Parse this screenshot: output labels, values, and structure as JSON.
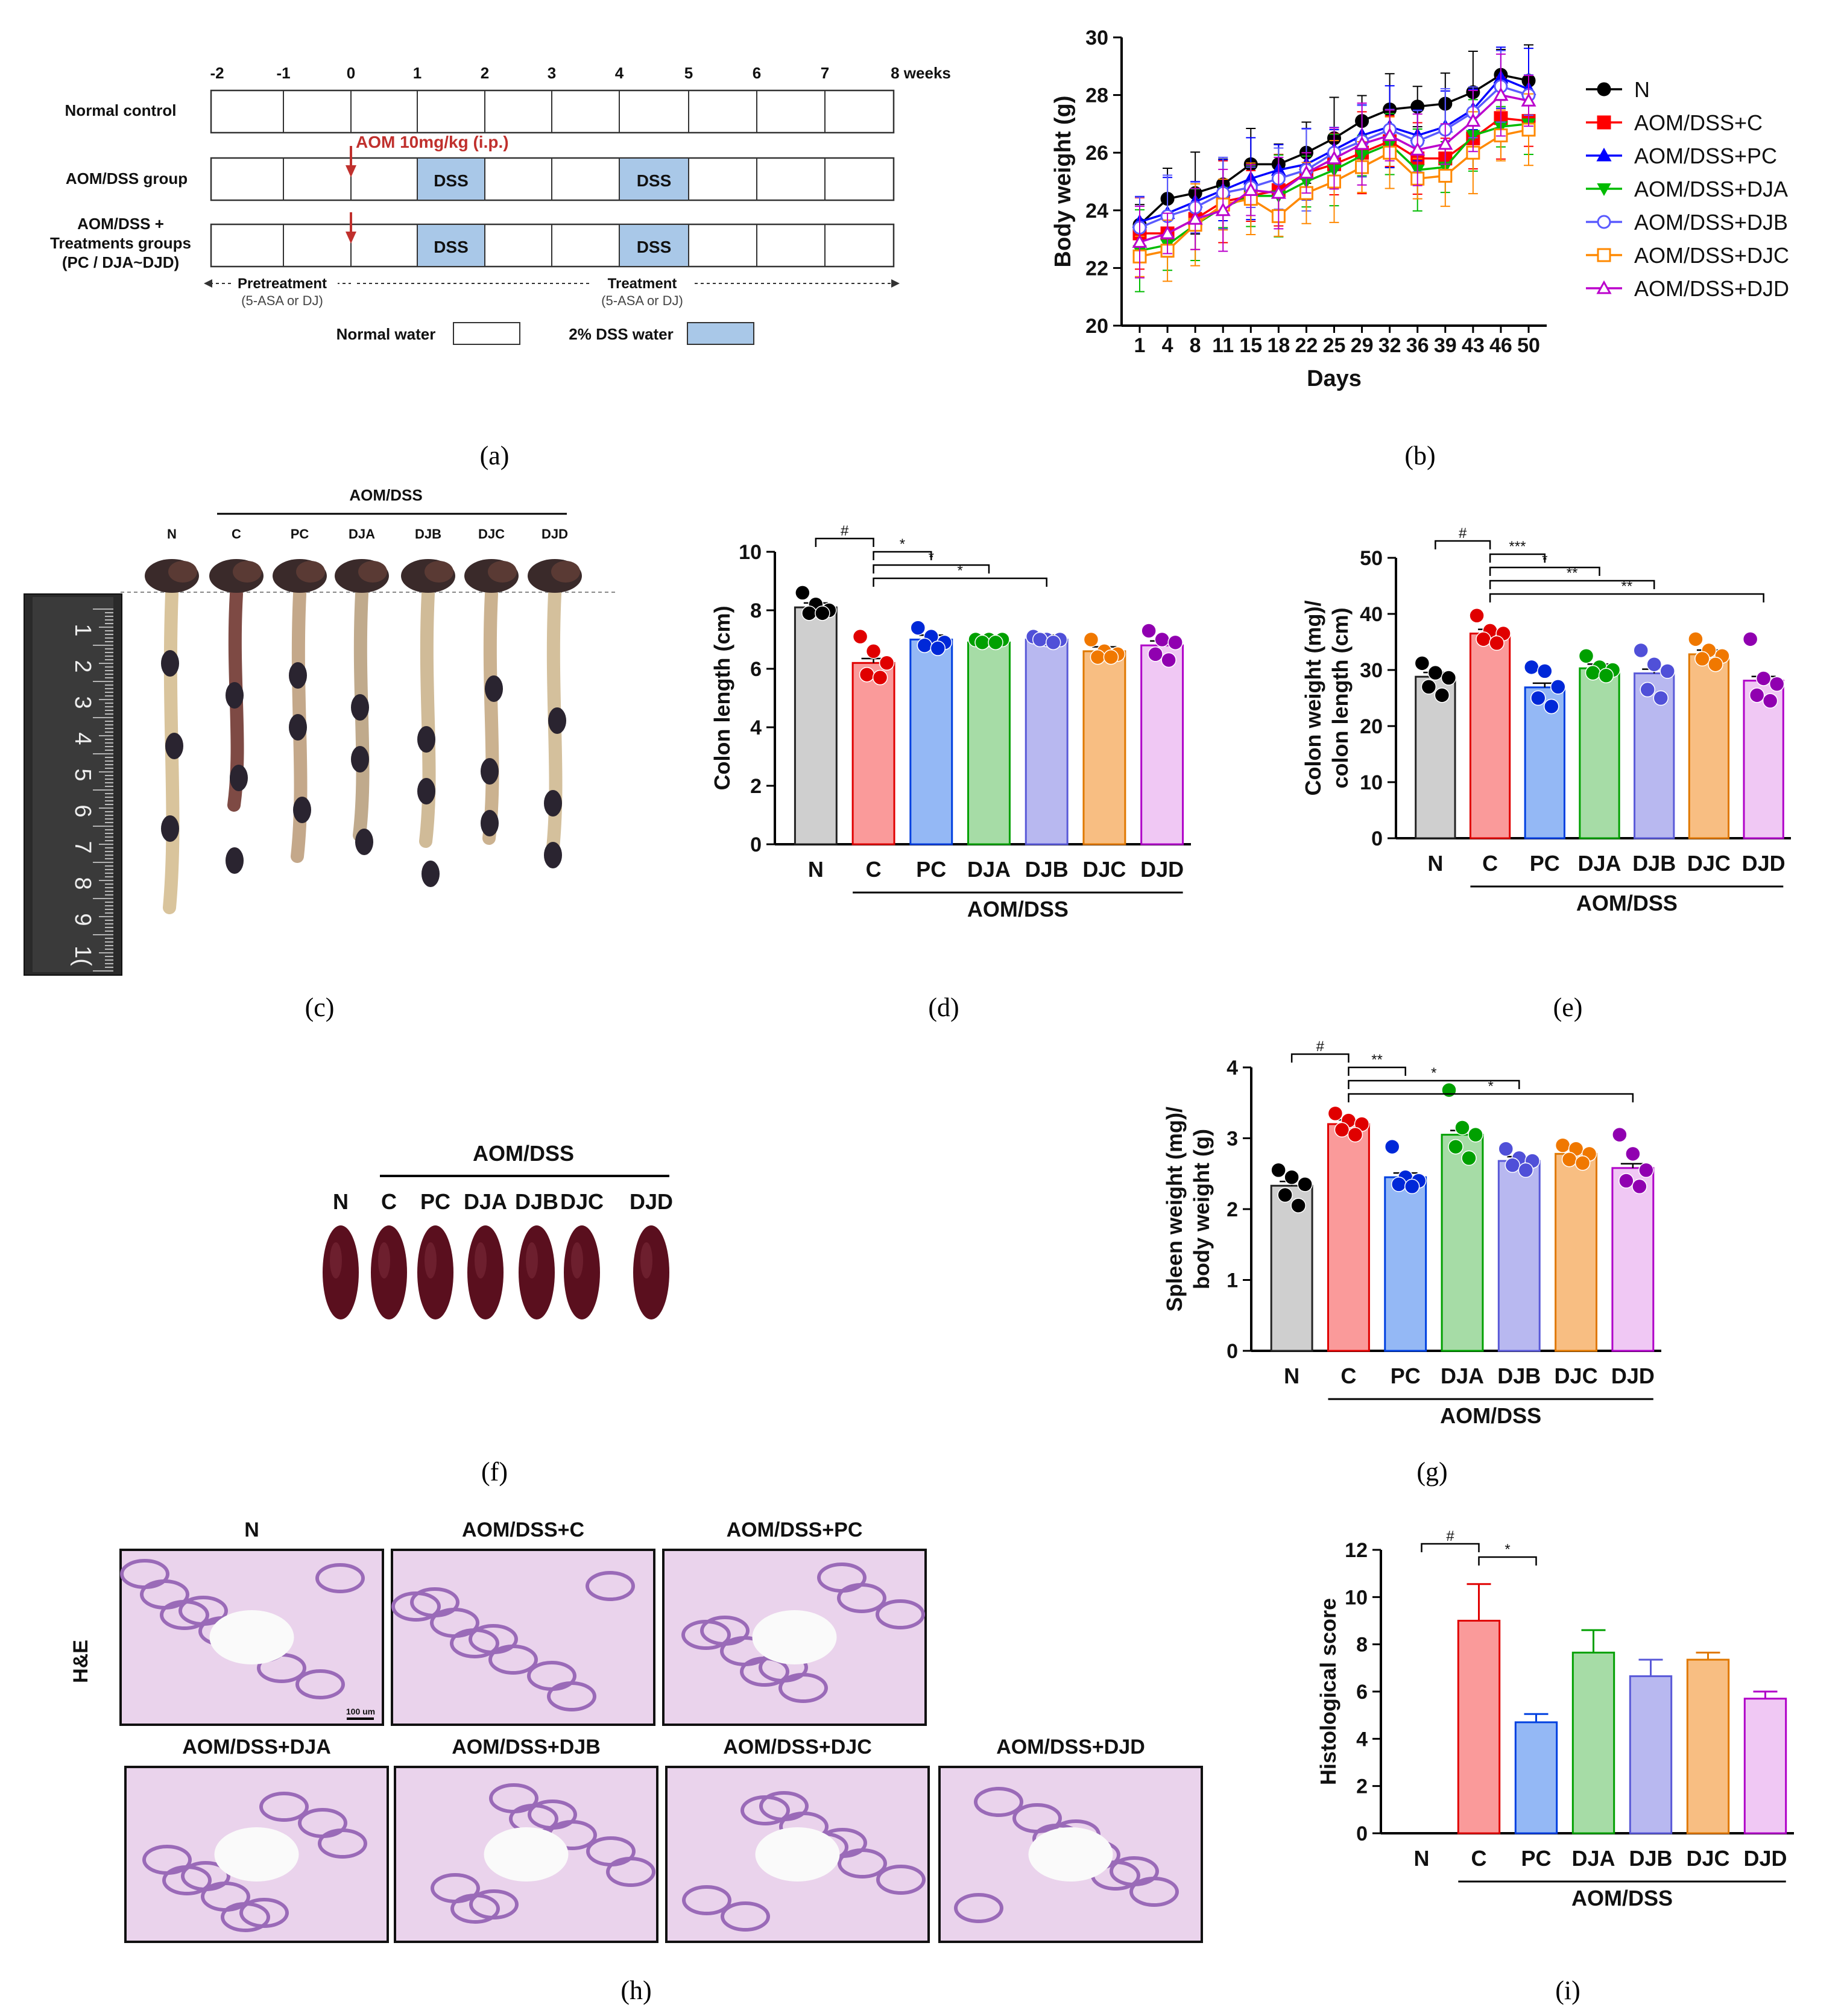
{
  "captions": [
    "(a)",
    "(b)",
    "(c)",
    "(d)",
    "(e)",
    "(f)",
    "(g)",
    "(h)",
    "(i)"
  ],
  "schedule": {
    "week_ticks": [
      "-2",
      "-1",
      "0",
      "1",
      "2",
      "3",
      "4",
      "5",
      "6",
      "7",
      "8 weeks"
    ],
    "rows": [
      "Normal control",
      "AOM/DSS group",
      "AOM/DSS +",
      "Treatments groups",
      "(PC / DJA~DJD)"
    ],
    "aom_label": "AOM 10mg/kg (i.p.)",
    "dss_label": "DSS",
    "pretreatment": "Pretreatment",
    "pretreatment_sub": "(5-ASA or DJ)",
    "treatment": "Treatment",
    "treatment_sub": "(5-ASA or DJ)",
    "legend_normal": "Normal water",
    "legend_dss": "2% DSS water",
    "colors": {
      "dss_fill": "#a9c8e8",
      "aom_arrow": "#c0302d"
    }
  },
  "colon_photo": {
    "header": "AOM/DSS",
    "labels": [
      "N",
      "C",
      "PC",
      "DJA",
      "DJB",
      "DJC",
      "DJD"
    ],
    "ruler_digits": [
      "1",
      "2",
      "3",
      "4",
      "5",
      "6",
      "7",
      "8",
      "9",
      "1("
    ]
  },
  "spleen_photo": {
    "header": "AOM/DSS",
    "labels": [
      "N",
      "C",
      "PC",
      "DJA",
      "DJB",
      "DJC",
      "DJD"
    ]
  },
  "histology": {
    "row_label": "H&E",
    "scale": "100 um",
    "panels": [
      "N",
      "AOM/DSS+C",
      "AOM/DSS+PC",
      "AOM/DSS+DJA",
      "AOM/DSS+DJB",
      "AOM/DSS+DJC",
      "AOM/DSS+DJD"
    ]
  },
  "chart_data": [
    {
      "id": "b",
      "type": "line",
      "xlabel": "Days",
      "ylabel": "Body weight (g)",
      "x": [
        1,
        4,
        8,
        11,
        15,
        18,
        22,
        25,
        29,
        32,
        36,
        39,
        43,
        46,
        50
      ],
      "ylim": [
        20,
        30
      ],
      "yticks": [
        20,
        22,
        24,
        26,
        28,
        30
      ],
      "legend": "right",
      "series": [
        {
          "name": "N",
          "color": "#000000",
          "marker": "circle-filled",
          "values": [
            23.5,
            24.4,
            24.6,
            24.9,
            25.6,
            25.6,
            26.0,
            26.5,
            27.1,
            27.5,
            27.6,
            27.7,
            28.1,
            28.7,
            28.5
          ]
        },
        {
          "name": "AOM/DSS+C",
          "color": "#ff0000",
          "marker": "square-filled",
          "values": [
            23.2,
            23.2,
            23.7,
            24.3,
            24.5,
            24.7,
            25.3,
            25.6,
            26.0,
            26.4,
            25.8,
            25.8,
            26.5,
            27.2,
            27.1
          ]
        },
        {
          "name": "AOM/DSS+PC",
          "color": "#0000ff",
          "marker": "triangle-filled",
          "values": [
            23.6,
            23.9,
            24.3,
            24.7,
            25.1,
            25.4,
            25.6,
            26.1,
            26.6,
            26.9,
            26.6,
            26.9,
            27.5,
            28.6,
            28.2
          ]
        },
        {
          "name": "AOM/DSS+DJA",
          "color": "#00bb00",
          "marker": "triangle-down-filled",
          "values": [
            22.6,
            22.8,
            23.5,
            24.1,
            24.5,
            24.5,
            25.0,
            25.4,
            25.9,
            26.3,
            25.4,
            25.5,
            26.6,
            26.9,
            27.0
          ]
        },
        {
          "name": "AOM/DSS+DJB",
          "color": "#5a5aff",
          "marker": "circle-open",
          "values": [
            23.4,
            23.8,
            24.1,
            24.6,
            24.8,
            25.1,
            25.4,
            26.0,
            26.4,
            26.8,
            26.4,
            26.8,
            27.4,
            28.3,
            28.0
          ]
        },
        {
          "name": "AOM/DSS+DJC",
          "color": "#ff8800",
          "marker": "square-open",
          "values": [
            22.4,
            22.6,
            23.5,
            24.2,
            24.4,
            23.8,
            24.6,
            25.0,
            25.5,
            26.0,
            25.1,
            25.2,
            26.0,
            26.6,
            26.8
          ]
        },
        {
          "name": "AOM/DSS+DJD",
          "color": "#bb00cc",
          "marker": "triangle-open",
          "values": [
            22.9,
            23.2,
            23.7,
            24.0,
            24.7,
            24.6,
            25.3,
            25.8,
            26.3,
            26.6,
            26.1,
            26.3,
            27.1,
            28.0,
            27.8
          ]
        }
      ]
    },
    {
      "id": "d",
      "type": "bar",
      "ylabel": "Colon length (cm)",
      "categories": [
        "N",
        "C",
        "PC",
        "DJA",
        "DJB",
        "DJC",
        "DJD"
      ],
      "group_label": "AOM/DSS",
      "values": [
        8.1,
        6.2,
        7.0,
        6.9,
        7.0,
        6.6,
        6.8
      ],
      "points": [
        [
          8.6,
          8.2,
          8.0,
          7.9,
          7.9
        ],
        [
          7.1,
          6.6,
          6.2,
          5.8,
          5.7
        ],
        [
          7.4,
          7.1,
          6.9,
          6.8,
          6.7
        ],
        [
          7.0,
          7.0,
          7.0,
          6.9,
          6.9
        ],
        [
          7.1,
          7.0,
          7.0,
          7.0,
          6.9
        ],
        [
          7.0,
          6.6,
          6.5,
          6.4,
          6.4
        ],
        [
          7.3,
          7.0,
          6.9,
          6.5,
          6.3
        ]
      ],
      "ylim": [
        0,
        10
      ],
      "yticks": [
        0,
        2,
        4,
        6,
        8,
        10
      ],
      "sig": [
        {
          "from": 0,
          "to": 1,
          "label": "#"
        },
        {
          "from": 1,
          "to": 2,
          "label": "*"
        },
        {
          "from": 1,
          "to": 3,
          "label": "*"
        },
        {
          "from": 1,
          "to": 4,
          "label": "*"
        }
      ]
    },
    {
      "id": "e",
      "type": "bar",
      "ylabel": "Colon weight (mg)/ colon length (cm)",
      "categories": [
        "N",
        "C",
        "PC",
        "DJA",
        "DJB",
        "DJC",
        "DJD"
      ],
      "group_label": "AOM/DSS",
      "values": [
        28.8,
        36.5,
        26.9,
        30.3,
        29.4,
        32.8,
        28.1
      ],
      "points": [
        [
          31.2,
          29.5,
          28.6,
          27.0,
          25.5
        ],
        [
          39.7,
          37.0,
          36.5,
          35.5,
          34.8
        ],
        [
          30.5,
          29.8,
          27.0,
          25.0,
          23.5
        ],
        [
          32.5,
          30.5,
          30.0,
          29.5,
          29.0
        ],
        [
          33.5,
          31.0,
          29.8,
          26.5,
          25.0
        ],
        [
          35.5,
          33.5,
          32.5,
          32.0,
          31.0
        ],
        [
          35.5,
          28.5,
          27.5,
          25.5,
          24.5
        ]
      ],
      "ylim": [
        0,
        50
      ],
      "yticks": [
        0,
        10,
        20,
        30,
        40,
        50
      ],
      "sig": [
        {
          "from": 0,
          "to": 1,
          "label": "#"
        },
        {
          "from": 1,
          "to": 2,
          "label": "***"
        },
        {
          "from": 1,
          "to": 3,
          "label": "*"
        },
        {
          "from": 1,
          "to": 4,
          "label": "**"
        },
        {
          "from": 1,
          "to": 6,
          "label": "**"
        }
      ]
    },
    {
      "id": "g",
      "type": "bar",
      "ylabel": "Spleen weight (mg)/ body weight (g)",
      "categories": [
        "N",
        "C",
        "PC",
        "DJA",
        "DJB",
        "DJC",
        "DJD"
      ],
      "group_label": "AOM/DSS",
      "values": [
        2.33,
        3.2,
        2.45,
        3.05,
        2.68,
        2.78,
        2.58
      ],
      "points": [
        [
          2.55,
          2.45,
          2.35,
          2.2,
          2.05
        ],
        [
          3.35,
          3.25,
          3.2,
          3.12,
          3.05
        ],
        [
          2.88,
          2.45,
          2.4,
          2.35,
          2.32
        ],
        [
          3.68,
          3.15,
          3.05,
          2.88,
          2.72
        ],
        [
          2.85,
          2.72,
          2.68,
          2.62,
          2.55
        ],
        [
          2.9,
          2.85,
          2.78,
          2.7,
          2.65
        ],
        [
          3.05,
          2.78,
          2.55,
          2.4,
          2.32
        ]
      ],
      "ylim": [
        0,
        4
      ],
      "yticks": [
        0,
        1,
        2,
        3,
        4
      ],
      "sig": [
        {
          "from": 0,
          "to": 1,
          "label": "#"
        },
        {
          "from": 1,
          "to": 2,
          "label": "**"
        },
        {
          "from": 1,
          "to": 4,
          "label": "*"
        },
        {
          "from": 1,
          "to": 6,
          "label": "*"
        }
      ]
    },
    {
      "id": "i",
      "type": "bar",
      "ylabel": "Histological score",
      "categories": [
        "N",
        "C",
        "PC",
        "DJA",
        "DJB",
        "DJC",
        "DJD"
      ],
      "group_label": "AOM/DSS",
      "values": [
        0,
        9.0,
        4.7,
        7.65,
        6.65,
        7.35,
        5.7
      ],
      "errors": [
        0,
        1.55,
        0.35,
        0.95,
        0.7,
        0.3,
        0.3
      ],
      "ylim": [
        0,
        12
      ],
      "yticks": [
        0,
        2,
        4,
        6,
        8,
        10,
        12
      ],
      "sig": [
        {
          "from": 0,
          "to": 1,
          "label": "#"
        },
        {
          "from": 1,
          "to": 2,
          "label": "*"
        }
      ]
    }
  ]
}
